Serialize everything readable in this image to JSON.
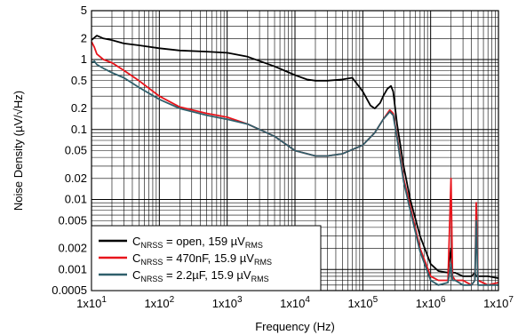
{
  "chart_data": {
    "type": "line",
    "title": "",
    "xlabel": "Frequency (Hz)",
    "ylabel": "Noise Density (µV/√Hz)",
    "x_scale": "log",
    "y_scale": "log",
    "xlim": [
      10,
      10000000
    ],
    "ylim": [
      0.0005,
      5
    ],
    "grid": true,
    "legend_position": "bottom-left",
    "x_ticks": [
      {
        "value": 10,
        "base": "1x10",
        "exp": "1"
      },
      {
        "value": 100,
        "base": "1x10",
        "exp": "2"
      },
      {
        "value": 1000,
        "base": "1x10",
        "exp": "3"
      },
      {
        "value": 10000,
        "base": "1x10",
        "exp": "4"
      },
      {
        "value": 100000,
        "base": "1x10",
        "exp": "5"
      },
      {
        "value": 1000000,
        "base": "1x10",
        "exp": "6"
      },
      {
        "value": 10000000,
        "base": "1x10",
        "exp": "7"
      }
    ],
    "y_ticks": [
      {
        "value": 5,
        "label": "5"
      },
      {
        "value": 2,
        "label": "2"
      },
      {
        "value": 1,
        "label": "1"
      },
      {
        "value": 0.5,
        "label": "0.5"
      },
      {
        "value": 0.2,
        "label": "0.2"
      },
      {
        "value": 0.1,
        "label": "0.1"
      },
      {
        "value": 0.05,
        "label": "0.05"
      },
      {
        "value": 0.02,
        "label": "0.02"
      },
      {
        "value": 0.01,
        "label": "0.01"
      },
      {
        "value": 0.005,
        "label": "0.005"
      },
      {
        "value": 0.002,
        "label": "0.002"
      },
      {
        "value": 0.001,
        "label": "0.001"
      },
      {
        "value": 0.0005,
        "label": "0.0005"
      }
    ],
    "series": [
      {
        "label_main": "C",
        "label_sub": "NRSS",
        "label_mid": " = open, 159 µV",
        "label_sub2": "RMS",
        "color": "#000000",
        "x": [
          10,
          12,
          15,
          20,
          30,
          50,
          100,
          200,
          500,
          1000,
          2000,
          5000,
          10000,
          15000,
          20000,
          30000,
          50000,
          70000,
          100000,
          130000,
          150000,
          180000,
          200000,
          230000,
          260000,
          280000,
          320000,
          400000,
          500000,
          700000,
          1000000,
          1300000,
          1800000,
          2000000,
          2100000,
          2300000,
          3000000,
          4000000,
          4500000,
          4700000,
          5000000,
          7000000,
          10000000
        ],
        "y": [
          1.9,
          2.2,
          2.0,
          1.9,
          1.7,
          1.6,
          1.45,
          1.35,
          1.3,
          1.25,
          1.1,
          0.8,
          0.6,
          0.52,
          0.5,
          0.5,
          0.52,
          0.55,
          0.35,
          0.22,
          0.2,
          0.24,
          0.3,
          0.38,
          0.42,
          0.35,
          0.12,
          0.03,
          0.01,
          0.003,
          0.0012,
          0.00095,
          0.0009,
          0.002,
          0.0009,
          0.0009,
          0.0008,
          0.0008,
          0.0009,
          0.0008,
          0.0008,
          0.0008,
          0.00075
        ]
      },
      {
        "label_main": "C",
        "label_sub": "NRSS",
        "label_mid": " = 470nF, 15.9 µV",
        "label_sub2": "RMS",
        "color": "#e8141b",
        "x": [
          10,
          11,
          12,
          15,
          20,
          30,
          50,
          100,
          200,
          500,
          1000,
          2000,
          5000,
          10000,
          20000,
          30000,
          50000,
          100000,
          150000,
          200000,
          250000,
          280000,
          320000,
          400000,
          500000,
          700000,
          1000000,
          1300000,
          1800000,
          2000000,
          2100000,
          2300000,
          3000000,
          4000000,
          4500000,
          4700000,
          5000000,
          7000000,
          10000000
        ],
        "y": [
          1.8,
          1.5,
          1.2,
          1.0,
          0.9,
          0.7,
          0.5,
          0.3,
          0.21,
          0.17,
          0.15,
          0.12,
          0.08,
          0.05,
          0.042,
          0.042,
          0.045,
          0.06,
          0.09,
          0.14,
          0.19,
          0.17,
          0.08,
          0.02,
          0.008,
          0.002,
          0.0008,
          0.0007,
          0.0007,
          0.02,
          0.0008,
          0.0007,
          0.0007,
          0.0006,
          0.0007,
          0.009,
          0.0007,
          0.0006,
          0.00065
        ]
      },
      {
        "label_main": "C",
        "label_sub": "NRSS",
        "label_mid": " = 2.2µF, 15.9 µV",
        "label_sub2": "RMS",
        "color": "#2f5f6b",
        "x": [
          10,
          11,
          12,
          15,
          20,
          30,
          50,
          100,
          200,
          500,
          1000,
          2000,
          5000,
          10000,
          20000,
          30000,
          50000,
          100000,
          150000,
          200000,
          250000,
          280000,
          320000,
          400000,
          500000,
          700000,
          1000000,
          1300000,
          1800000,
          2000000,
          2100000,
          2300000,
          3000000,
          4000000,
          4500000,
          4700000,
          5000000,
          7000000,
          10000000
        ],
        "y": [
          0.9,
          0.95,
          0.85,
          0.75,
          0.65,
          0.55,
          0.4,
          0.27,
          0.2,
          0.16,
          0.14,
          0.12,
          0.08,
          0.05,
          0.042,
          0.042,
          0.045,
          0.06,
          0.09,
          0.14,
          0.18,
          0.16,
          0.075,
          0.018,
          0.007,
          0.0018,
          0.0007,
          0.0006,
          0.00065,
          0.0012,
          0.0007,
          0.0007,
          0.0006,
          0.0006,
          0.0007,
          0.005,
          0.0006,
          0.0006,
          0.0006
        ]
      }
    ]
  }
}
